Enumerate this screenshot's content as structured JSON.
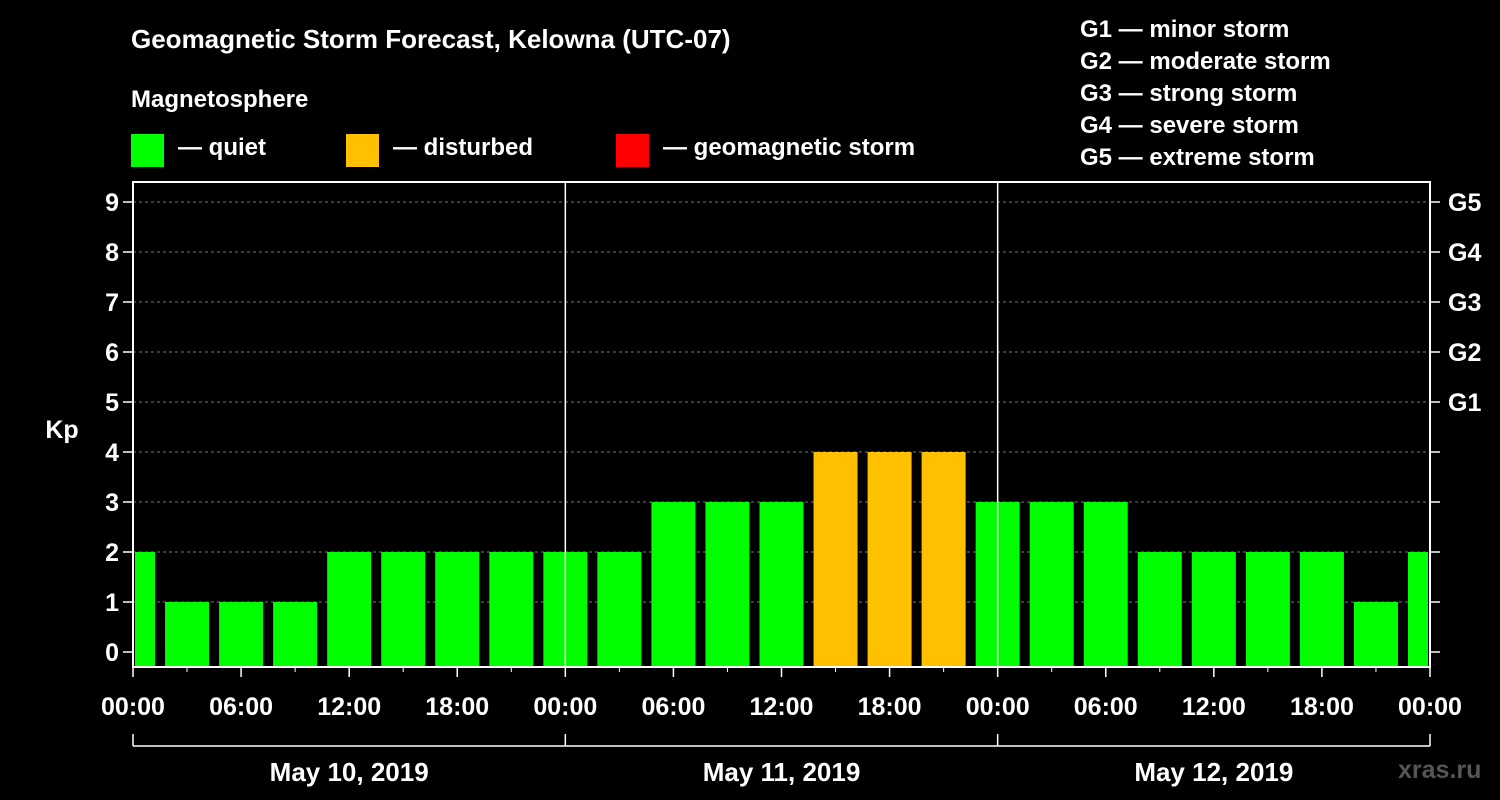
{
  "chart_data": {
    "type": "bar",
    "title": "Geomagnetic Storm Forecast, Kelowna (UTC-07)",
    "ylabel": "Kp",
    "ylim": [
      0,
      9
    ],
    "yticks": [
      0,
      1,
      2,
      3,
      4,
      5,
      6,
      7,
      8,
      9
    ],
    "right_ticks": [
      {
        "y": 5,
        "label": "G1"
      },
      {
        "y": 6,
        "label": "G2"
      },
      {
        "y": 7,
        "label": "G3"
      },
      {
        "y": 8,
        "label": "G4"
      },
      {
        "y": 9,
        "label": "G5"
      }
    ],
    "xtick_labels": [
      "00:00",
      "06:00",
      "12:00",
      "18:00",
      "00:00",
      "06:00",
      "12:00",
      "18:00",
      "00:00",
      "06:00",
      "12:00",
      "18:00",
      "00:00"
    ],
    "dates": [
      "May 10, 2019",
      "May 11, 2019",
      "May 12, 2019"
    ],
    "x": [
      "May 10 00:00",
      "May 10 03:00",
      "May 10 06:00",
      "May 10 09:00",
      "May 10 12:00",
      "May 10 15:00",
      "May 10 18:00",
      "May 10 21:00",
      "May 11 00:00",
      "May 11 03:00",
      "May 11 06:00",
      "May 11 09:00",
      "May 11 12:00",
      "May 11 15:00",
      "May 11 18:00",
      "May 11 21:00",
      "May 12 00:00",
      "May 12 03:00",
      "May 12 06:00",
      "May 12 09:00",
      "May 12 12:00",
      "May 12 15:00",
      "May 12 18:00",
      "May 12 21:00",
      "May 13 00:00"
    ],
    "values": [
      2,
      1,
      1,
      1,
      2,
      2,
      2,
      2,
      2,
      2,
      3,
      3,
      3,
      4,
      4,
      4,
      3,
      3,
      3,
      2,
      2,
      2,
      2,
      1,
      2
    ],
    "status": [
      "quiet",
      "quiet",
      "quiet",
      "quiet",
      "quiet",
      "quiet",
      "quiet",
      "quiet",
      "quiet",
      "quiet",
      "quiet",
      "quiet",
      "quiet",
      "disturbed",
      "disturbed",
      "disturbed",
      "quiet",
      "quiet",
      "quiet",
      "quiet",
      "quiet",
      "quiet",
      "quiet",
      "quiet",
      "quiet"
    ],
    "grid": "dashed horizontal at each Kp level",
    "legend": {
      "title": "Magnetosphere",
      "items": [
        {
          "label": "— quiet",
          "color": "#00ff00"
        },
        {
          "label": "— disturbed",
          "color": "#ffc000"
        },
        {
          "label": "— geomagnetic storm",
          "color": "#ff0000"
        }
      ]
    },
    "g_scale": [
      "G1 — minor storm",
      "G2 — moderate storm",
      "G3 — strong storm",
      "G4 — severe storm",
      "G5 — extreme storm"
    ],
    "watermark": "xras.ru"
  }
}
